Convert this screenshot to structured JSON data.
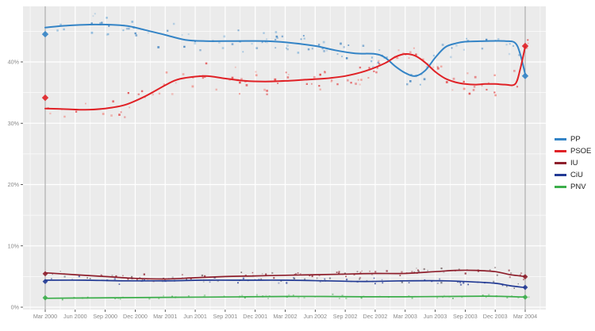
{
  "chart_data": {
    "type": "scatter",
    "title": "",
    "x_axis": {
      "tick_labels": [
        "Mar 2000",
        "Jun 2000",
        "Sep 2000",
        "Dec 2000",
        "Mar 2001",
        "Jun 2001",
        "Sep 2001",
        "Dec 2001",
        "Mar 2002",
        "Jun 2002",
        "Sep 2002",
        "Dec 2002",
        "Mar 2003",
        "Jun 2003",
        "Sep 2003",
        "Dec 2003",
        "Mar 2004"
      ],
      "tick_months": [
        0,
        3,
        6,
        9,
        12,
        15,
        18,
        21,
        24,
        27,
        30,
        33,
        36,
        39,
        42,
        45,
        48
      ]
    },
    "y_axis": {
      "tick_labels": [
        "0%",
        "10%",
        "20%",
        "30%",
        "40%"
      ],
      "tick_values": [
        0,
        10,
        20,
        30,
        40
      ],
      "range": [
        -0.6,
        49.1
      ]
    },
    "grid": {
      "major": true,
      "minor": true,
      "panel_color": "#ebebeb",
      "grid_color": "#ffffff"
    },
    "election_marker_months": [
      0,
      48
    ],
    "election_line_color": "#9d9d9d",
    "axis_text_color": "#8a8a8a",
    "tick_mark_color": "#333333",
    "legend": {
      "position": "right",
      "entries": [
        "PP",
        "PSOE",
        "IU",
        "CiU",
        "PNV"
      ]
    },
    "series": [
      {
        "name": "PP",
        "color": "#3484c6",
        "point_colors": [
          "#3a7fbe",
          "#7fb2d9"
        ],
        "trend": [
          [
            0,
            45.6
          ],
          [
            2,
            45.9
          ],
          [
            5,
            46.1
          ],
          [
            8,
            45.9
          ],
          [
            10,
            45.2
          ],
          [
            12,
            44.4
          ],
          [
            14,
            43.6
          ],
          [
            16,
            43.4
          ],
          [
            19,
            43.4
          ],
          [
            22,
            43.4
          ],
          [
            24,
            43.2
          ],
          [
            27,
            42.6
          ],
          [
            29,
            41.9
          ],
          [
            31,
            41.4
          ],
          [
            33,
            41.3
          ],
          [
            34,
            40.7
          ],
          [
            35,
            39.3
          ],
          [
            36,
            38.2
          ],
          [
            37,
            37.7
          ],
          [
            38,
            38.6
          ],
          [
            39,
            40.7
          ],
          [
            40,
            42.4
          ],
          [
            41,
            43.0
          ],
          [
            42,
            43.3
          ],
          [
            44,
            43.4
          ],
          [
            46,
            43.4
          ],
          [
            47,
            43.1
          ],
          [
            47.5,
            41.3
          ],
          [
            48,
            38.0
          ]
        ],
        "election_results": [
          [
            0,
            44.52
          ],
          [
            48,
            37.71
          ]
        ],
        "scatter": {
          "count": 112,
          "jitter": 2.4,
          "seed": 11,
          "point_size": 2.2
        }
      },
      {
        "name": "PSOE",
        "color": "#e02126",
        "point_colors": [
          "#e13a3c",
          "#f08c84"
        ],
        "trend": [
          [
            0,
            32.4
          ],
          [
            2,
            32.3
          ],
          [
            4,
            32.2
          ],
          [
            6,
            32.4
          ],
          [
            8,
            33.0
          ],
          [
            10,
            34.4
          ],
          [
            12,
            36.2
          ],
          [
            13,
            37.0
          ],
          [
            14,
            37.4
          ],
          [
            16,
            37.7
          ],
          [
            18,
            37.3
          ],
          [
            20,
            36.9
          ],
          [
            22,
            36.8
          ],
          [
            24,
            36.9
          ],
          [
            26,
            37.1
          ],
          [
            28,
            37.3
          ],
          [
            30,
            37.7
          ],
          [
            32,
            38.5
          ],
          [
            34,
            39.8
          ],
          [
            35,
            40.8
          ],
          [
            36,
            41.3
          ],
          [
            37,
            41.0
          ],
          [
            38,
            39.9
          ],
          [
            39,
            38.4
          ],
          [
            40,
            37.3
          ],
          [
            41,
            36.7
          ],
          [
            42,
            36.4
          ],
          [
            43,
            36.3
          ],
          [
            44,
            36.4
          ],
          [
            45,
            36.4
          ],
          [
            46,
            36.3
          ],
          [
            47,
            36.4
          ],
          [
            47.5,
            38.8
          ],
          [
            48,
            42.5
          ]
        ],
        "election_results": [
          [
            0,
            34.16
          ],
          [
            48,
            42.59
          ]
        ],
        "scatter": {
          "count": 112,
          "jitter": 2.4,
          "seed": 22,
          "point_size": 2.2
        }
      },
      {
        "name": "IU",
        "color": "#8e1f2c",
        "point_colors": [
          "#8e2430",
          "#6e5a5c"
        ],
        "trend": [
          [
            0,
            5.6
          ],
          [
            3,
            5.3
          ],
          [
            6,
            5.0
          ],
          [
            9,
            4.7
          ],
          [
            12,
            4.6
          ],
          [
            15,
            4.8
          ],
          [
            18,
            5.0
          ],
          [
            21,
            5.1
          ],
          [
            24,
            5.2
          ],
          [
            27,
            5.3
          ],
          [
            30,
            5.4
          ],
          [
            33,
            5.5
          ],
          [
            36,
            5.5
          ],
          [
            39,
            5.8
          ],
          [
            41,
            6.0
          ],
          [
            43,
            6.0
          ],
          [
            45,
            5.8
          ],
          [
            46.5,
            5.3
          ],
          [
            48,
            5.0
          ]
        ],
        "election_results": [
          [
            0,
            5.45
          ],
          [
            48,
            4.96
          ]
        ],
        "scatter": {
          "count": 88,
          "jitter": 0.85,
          "seed": 33,
          "point_size": 1.8
        }
      },
      {
        "name": "CiU",
        "color": "#223a94",
        "point_colors": [
          "#2b3f96",
          "#5f6370"
        ],
        "trend": [
          [
            0,
            4.4
          ],
          [
            4,
            4.4
          ],
          [
            8,
            4.3
          ],
          [
            12,
            4.3
          ],
          [
            16,
            4.4
          ],
          [
            20,
            4.4
          ],
          [
            24,
            4.4
          ],
          [
            28,
            4.3
          ],
          [
            32,
            4.2
          ],
          [
            36,
            4.3
          ],
          [
            40,
            4.3
          ],
          [
            43,
            4.1
          ],
          [
            45,
            3.9
          ],
          [
            46.5,
            3.5
          ],
          [
            48,
            3.2
          ]
        ],
        "election_results": [
          [
            0,
            4.19
          ],
          [
            48,
            3.23
          ]
        ],
        "scatter": {
          "count": 78,
          "jitter": 0.7,
          "seed": 44,
          "point_size": 1.8
        }
      },
      {
        "name": "PNV",
        "color": "#3cae4b",
        "point_colors": [
          "#3fae4d",
          "#7cc97f"
        ],
        "trend": [
          [
            0,
            1.45
          ],
          [
            4,
            1.5
          ],
          [
            8,
            1.55
          ],
          [
            12,
            1.6
          ],
          [
            16,
            1.65
          ],
          [
            20,
            1.7
          ],
          [
            24,
            1.75
          ],
          [
            28,
            1.75
          ],
          [
            32,
            1.7
          ],
          [
            36,
            1.7
          ],
          [
            40,
            1.75
          ],
          [
            44,
            1.8
          ],
          [
            46,
            1.75
          ],
          [
            48,
            1.65
          ]
        ],
        "election_results": [
          [
            0,
            1.53
          ],
          [
            48,
            1.63
          ]
        ],
        "scatter": {
          "count": 62,
          "jitter": 0.38,
          "seed": 55,
          "point_size": 1.8
        }
      }
    ]
  }
}
